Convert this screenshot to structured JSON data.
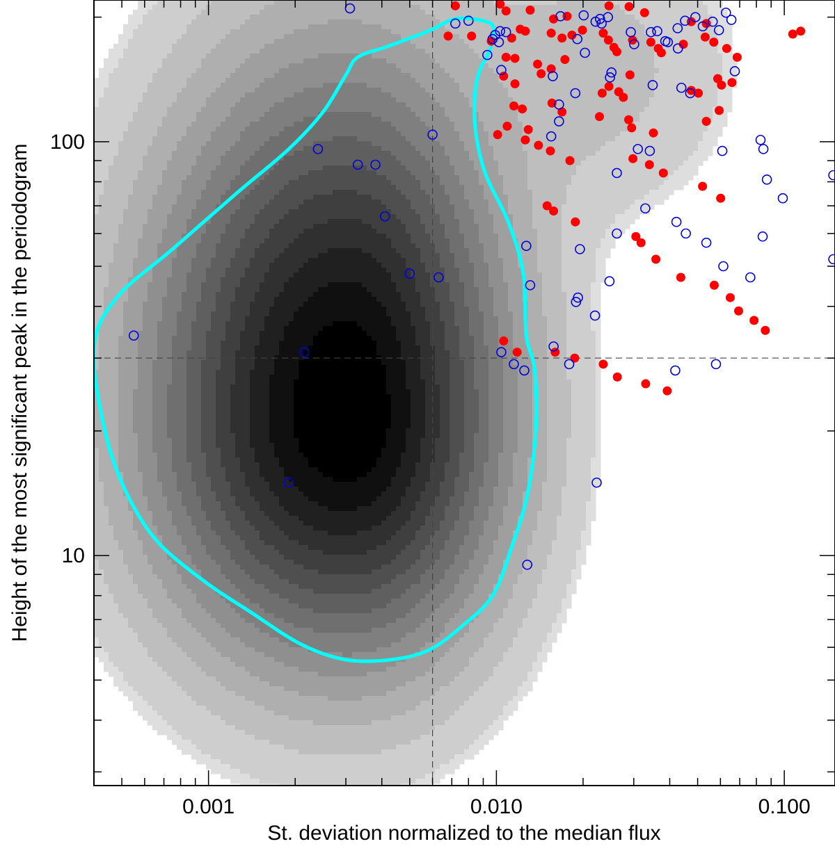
{
  "chart_data": {
    "type": "scatter",
    "title": "",
    "xlabel": "St. deviation normalized to the median flux",
    "ylabel": "Height of the most significant peak in the periodogram",
    "xscale": "log",
    "yscale": "log",
    "xlim": [
      0.0004,
      0.15
    ],
    "ylim": [
      2.78,
      220
    ],
    "grid": false,
    "legend": "none",
    "x_ticks": [
      {
        "value": 0.001,
        "label": "0.001"
      },
      {
        "value": 0.01,
        "label": "0.010"
      },
      {
        "value": 0.1,
        "label": "0.100"
      }
    ],
    "y_ticks": [
      {
        "value": 10,
        "label": "10"
      },
      {
        "value": 100,
        "label": "100"
      }
    ],
    "threshold_lines": {
      "x": 0.006,
      "y": 30
    },
    "density": {
      "description": "grayscale 2D density of the main sample",
      "peak": {
        "x": 0.003,
        "y": 22
      },
      "colors": {
        "outer": "#eeeeee",
        "inner": "#000000"
      }
    },
    "contour": {
      "color": "#00ffff",
      "points": [
        [
          0.0127,
          34
        ],
        [
          0.0136,
          28
        ],
        [
          0.0137,
          20
        ],
        [
          0.0128,
          14
        ],
        [
          0.0113,
          10.5
        ],
        [
          0.0097,
          8.0
        ],
        [
          0.0075,
          6.7
        ],
        [
          0.0058,
          5.9
        ],
        [
          0.0043,
          5.6
        ],
        [
          0.003,
          5.6
        ],
        [
          0.0021,
          6.1
        ],
        [
          0.0014,
          7.3
        ],
        [
          0.00096,
          8.7
        ],
        [
          0.00065,
          11.0
        ],
        [
          0.0005,
          15
        ],
        [
          0.00043,
          21
        ],
        [
          0.0004,
          32
        ],
        [
          0.00048,
          42
        ],
        [
          0.00075,
          55
        ],
        [
          0.00125,
          75
        ],
        [
          0.0019,
          96
        ],
        [
          0.0025,
          118
        ],
        [
          0.003,
          145
        ],
        [
          0.0033,
          160
        ],
        [
          0.0042,
          170
        ],
        [
          0.0058,
          185
        ],
        [
          0.0072,
          198
        ],
        [
          0.009,
          196
        ],
        [
          0.0098,
          188
        ],
        [
          0.0095,
          167
        ],
        [
          0.0087,
          147
        ],
        [
          0.0084,
          127
        ],
        [
          0.0085,
          104
        ],
        [
          0.0092,
          83
        ],
        [
          0.011,
          64
        ],
        [
          0.0124,
          48
        ],
        [
          0.0127,
          34
        ]
      ]
    },
    "series": [
      {
        "name": "filled",
        "marker": "filled-circle",
        "color": "#ff0000",
        "points": [
          [
            0.0072,
            213
          ],
          [
            0.0103,
            215
          ],
          [
            0.0108,
            207
          ],
          [
            0.0131,
            208
          ],
          [
            0.0158,
            198
          ],
          [
            0.0176,
            201
          ],
          [
            0.0246,
            213
          ],
          [
            0.0289,
            212
          ],
          [
            0.0327,
            205
          ],
          [
            0.0475,
            195
          ],
          [
            0.0536,
            193
          ],
          [
            0.114,
            185
          ],
          [
            0.107,
            182
          ],
          [
            0.0068,
            180
          ],
          [
            0.0082,
            180
          ],
          [
            0.0096,
            175
          ],
          [
            0.0113,
            178
          ],
          [
            0.0121,
            187
          ],
          [
            0.0126,
            185
          ],
          [
            0.0155,
            183
          ],
          [
            0.0183,
            181
          ],
          [
            0.0169,
            178
          ],
          [
            0.0199,
            186
          ],
          [
            0.0235,
            183
          ],
          [
            0.0245,
            176
          ],
          [
            0.0256,
            169
          ],
          [
            0.0262,
            165
          ],
          [
            0.0297,
            176
          ],
          [
            0.0344,
            174
          ],
          [
            0.0365,
            168
          ],
          [
            0.0374,
            164
          ],
          [
            0.0446,
            172
          ],
          [
            0.0531,
            179
          ],
          [
            0.0569,
            174
          ],
          [
            0.0631,
            168
          ],
          [
            0.0686,
            160
          ],
          [
            0.0108,
            160
          ],
          [
            0.0116,
            159
          ],
          [
            0.0139,
            154
          ],
          [
            0.0155,
            150
          ],
          [
            0.0173,
            158
          ],
          [
            0.0143,
            146
          ],
          [
            0.0106,
            144
          ],
          [
            0.0116,
            138
          ],
          [
            0.0233,
            131
          ],
          [
            0.0246,
            136
          ],
          [
            0.0266,
            132
          ],
          [
            0.0276,
            128
          ],
          [
            0.0291,
            145
          ],
          [
            0.0475,
            133
          ],
          [
            0.0503,
            131
          ],
          [
            0.0587,
            142
          ],
          [
            0.0605,
            137
          ],
          [
            0.0658,
            139
          ],
          [
            0.0115,
            122
          ],
          [
            0.0123,
            120
          ],
          [
            0.0156,
            124
          ],
          [
            0.0169,
            118
          ],
          [
            0.0228,
            115
          ],
          [
            0.0288,
            113
          ],
          [
            0.0295,
            108
          ],
          [
            0.0351,
            105
          ],
          [
            0.0536,
            112
          ],
          [
            0.0594,
            119
          ],
          [
            0.0109,
            109
          ],
          [
            0.0129,
            107
          ],
          [
            0.0101,
            104
          ],
          [
            0.0126,
            101
          ],
          [
            0.014,
            98
          ],
          [
            0.0154,
            95
          ],
          [
            0.018,
            90
          ],
          [
            0.0298,
            91
          ],
          [
            0.034,
            88
          ],
          [
            0.038,
            84
          ],
          [
            0.052,
            78
          ],
          [
            0.0601,
            73
          ],
          [
            0.015,
            70
          ],
          [
            0.0158,
            68
          ],
          [
            0.0188,
            64
          ],
          [
            0.0305,
            59
          ],
          [
            0.0318,
            57
          ],
          [
            0.0358,
            52
          ],
          [
            0.0437,
            47
          ],
          [
            0.0571,
            45
          ],
          [
            0.0649,
            42
          ],
          [
            0.0694,
            39
          ],
          [
            0.0785,
            37
          ],
          [
            0.0859,
            35
          ],
          [
            0.0106,
            33
          ],
          [
            0.0118,
            31
          ],
          [
            0.016,
            31
          ],
          [
            0.0187,
            30
          ],
          [
            0.0235,
            29
          ],
          [
            0.0263,
            27
          ],
          [
            0.033,
            26
          ],
          [
            0.0392,
            25
          ]
        ]
      },
      {
        "name": "open",
        "marker": "open-circle",
        "color": "#0000dd",
        "points": [
          [
            0.0031,
            210
          ],
          [
            0.0072,
            193
          ],
          [
            0.008,
            196
          ],
          [
            0.0093,
            162
          ],
          [
            0.0097,
            177
          ],
          [
            0.0099,
            181
          ],
          [
            0.0102,
            174
          ],
          [
            0.0103,
            185
          ],
          [
            0.0104,
            149
          ],
          [
            0.0108,
            184
          ],
          [
            0.0167,
            201
          ],
          [
            0.0191,
            177
          ],
          [
            0.0201,
            202
          ],
          [
            0.0221,
            195
          ],
          [
            0.0229,
            198
          ],
          [
            0.0232,
            193
          ],
          [
            0.0244,
            200
          ],
          [
            0.0203,
            164
          ],
          [
            0.0251,
            147
          ],
          [
            0.0293,
            184
          ],
          [
            0.0301,
            172
          ],
          [
            0.0344,
            184
          ],
          [
            0.0362,
            185
          ],
          [
            0.0386,
            175
          ],
          [
            0.0426,
            188
          ],
          [
            0.0452,
            196
          ],
          [
            0.0491,
            200
          ],
          [
            0.0521,
            190
          ],
          [
            0.0564,
            195
          ],
          [
            0.0627,
            205
          ],
          [
            0.0655,
            197
          ],
          [
            0.0673,
            148
          ],
          [
            0.0593,
            186
          ],
          [
            0.0427,
            168
          ],
          [
            0.0394,
            174
          ],
          [
            0.0439,
            135
          ],
          [
            0.0471,
            131
          ],
          [
            0.0157,
            144
          ],
          [
            0.0165,
            123
          ],
          [
            0.0188,
            131
          ],
          [
            0.0248,
            143
          ],
          [
            0.0349,
            137
          ],
          [
            0.0165,
            112
          ],
          [
            0.0155,
            103
          ],
          [
            0.006,
            104
          ],
          [
            0.0024,
            96
          ],
          [
            0.0033,
            88
          ],
          [
            0.0038,
            88
          ],
          [
            0.031,
            96
          ],
          [
            0.0341,
            95
          ],
          [
            0.0609,
            95
          ],
          [
            0.0827,
            101
          ],
          [
            0.0846,
            96
          ],
          [
            0.0262,
            84
          ],
          [
            0.087,
            81
          ],
          [
            0.0988,
            73
          ],
          [
            0.0329,
            69
          ],
          [
            0.0262,
            60
          ],
          [
            0.0041,
            66
          ],
          [
            0.0127,
            56
          ],
          [
            0.0195,
            55
          ],
          [
            0.0247,
            46
          ],
          [
            0.0422,
            64
          ],
          [
            0.0455,
            60
          ],
          [
            0.0536,
            57
          ],
          [
            0.0614,
            50
          ],
          [
            0.0841,
            59
          ],
          [
            0.148,
            52
          ],
          [
            0.0762,
            47
          ],
          [
            0.005,
            48
          ],
          [
            0.0063,
            47
          ],
          [
            0.0131,
            45
          ],
          [
            0.0192,
            42
          ],
          [
            0.0189,
            41
          ],
          [
            0.022,
            38
          ],
          [
            0.0158,
            32
          ],
          [
            0.0179,
            29
          ],
          [
            0.00055,
            34
          ],
          [
            0.00215,
            31
          ],
          [
            0.0104,
            31
          ],
          [
            0.0115,
            29
          ],
          [
            0.0125,
            28
          ],
          [
            0.0418,
            28
          ],
          [
            0.0579,
            29
          ],
          [
            0.0019,
            15
          ],
          [
            0.0223,
            15
          ],
          [
            0.0128,
            9.5
          ],
          [
            0.148,
            83
          ]
        ]
      }
    ]
  }
}
